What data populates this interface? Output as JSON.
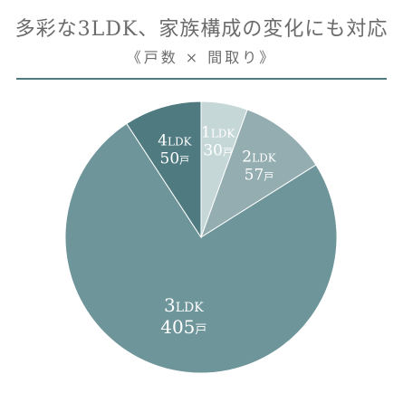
{
  "header": {
    "title": "多彩な3LDK、家族構成の変化にも対応",
    "subtitle": "《戸数 × 間取り》"
  },
  "colors": {
    "accent": "#4f7a80",
    "slices": [
      "#c6d7d8",
      "#93adb0",
      "#6e959a",
      "#4e7a80"
    ]
  },
  "chart_data": {
    "type": "pie",
    "title": "多彩な3LDK、家族構成の変化にも対応",
    "subtitle": "《戸数 × 間取り》",
    "unit": "戸",
    "slices": [
      {
        "label": "1LDK",
        "value": 30,
        "display_value": "30戸"
      },
      {
        "label": "2LDK",
        "value": 57,
        "display_value": "57戸"
      },
      {
        "label": "3LDK",
        "value": 405,
        "display_value": "405戸"
      },
      {
        "label": "4LDK",
        "value": 50,
        "display_value": "50戸"
      }
    ]
  }
}
